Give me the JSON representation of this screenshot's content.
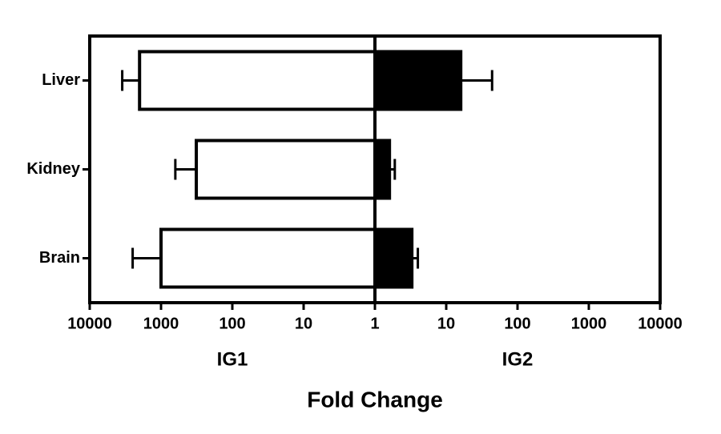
{
  "chart_data": {
    "type": "diverging-bar",
    "x_label": "Fold Change",
    "log_x": true,
    "xlim": [
      1,
      10000
    ],
    "xticks_left": [
      10000,
      1000,
      100,
      10
    ],
    "xticks_right": [
      1,
      10,
      100,
      1000,
      10000
    ],
    "categories": [
      "Liver",
      "Kidney",
      "Brain"
    ],
    "series": [
      {
        "name": "IG1",
        "side": "left",
        "color": "#ffffff",
        "values": [
          2000,
          320,
          1000
        ],
        "errors": [
          1500,
          310,
          1500
        ]
      },
      {
        "name": "IG2",
        "side": "right",
        "color": "#000000",
        "values": [
          16,
          1.6,
          3.3
        ],
        "errors": [
          28,
          0.3,
          0.7
        ]
      }
    ]
  }
}
